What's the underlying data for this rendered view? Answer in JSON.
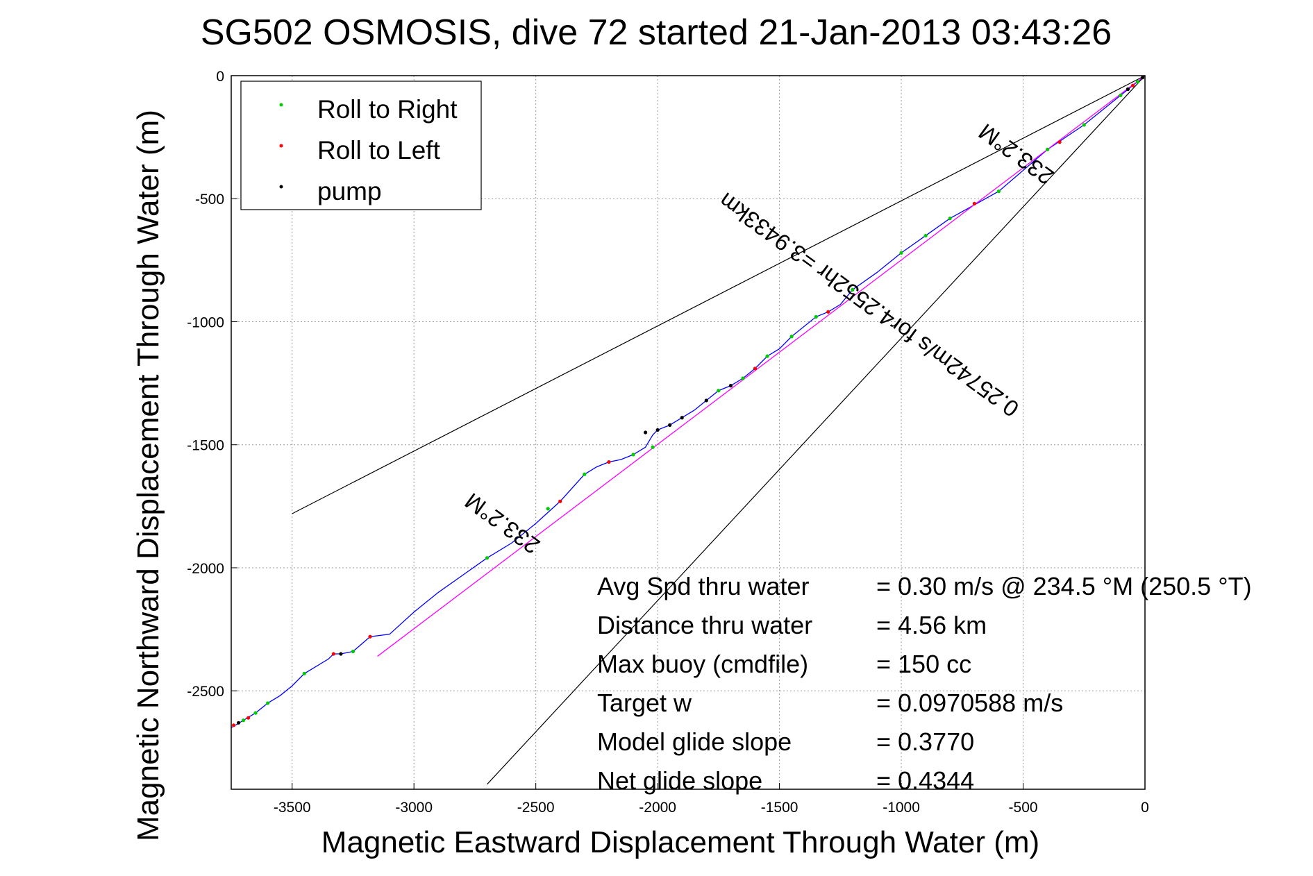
{
  "chart_data": {
    "type": "line",
    "title": "SG502 OSMOSIS, dive 72 started 21-Jan-2013 03:43:26",
    "xlabel": "Magnetic Eastward Displacement Through Water (m)",
    "ylabel": "Magnetic Northward Displacement Through Water (m)",
    "xlim": [
      -3750,
      0
    ],
    "ylim": [
      -2900,
      0
    ],
    "xticks": [
      -3500,
      -3000,
      -2500,
      -2000,
      -1500,
      -1000,
      -500,
      0
    ],
    "yticks": [
      0,
      -500,
      -1000,
      -1500,
      -2000,
      -2500
    ],
    "grid": true,
    "legend": {
      "placement": "top-left",
      "entries": [
        {
          "label": "Roll to Right",
          "color": "#00cc00"
        },
        {
          "label": "Roll to Left",
          "color": "#ff0000"
        },
        {
          "label": "pump",
          "color": "#000000"
        }
      ]
    },
    "series": [
      {
        "name": "track",
        "color": "#0000ff",
        "x": [
          0,
          -100,
          -250,
          -400,
          -600,
          -800,
          -900,
          -1000,
          -1100,
          -1200,
          -1250,
          -1300,
          -1350,
          -1450,
          -1500,
          -1550,
          -1600,
          -1650,
          -1700,
          -1750,
          -1800,
          -1850,
          -1900,
          -1950,
          -2000,
          -2020,
          -2050,
          -2100,
          -2150,
          -2200,
          -2250,
          -2300,
          -2400,
          -2500,
          -2600,
          -2700,
          -2800,
          -2900,
          -3000,
          -3100,
          -3180,
          -3250,
          -3300,
          -3330,
          -3350,
          -3450,
          -3500,
          -3550,
          -3600,
          -3650,
          -3700,
          -3750
        ],
        "y": [
          0,
          -80,
          -200,
          -300,
          -470,
          -580,
          -650,
          -720,
          -800,
          -870,
          -930,
          -960,
          -980,
          -1060,
          -1110,
          -1140,
          -1190,
          -1230,
          -1260,
          -1280,
          -1320,
          -1360,
          -1390,
          -1420,
          -1440,
          -1460,
          -1510,
          -1540,
          -1560,
          -1570,
          -1590,
          -1620,
          -1730,
          -1820,
          -1900,
          -1960,
          -2030,
          -2100,
          -2180,
          -2270,
          -2280,
          -2340,
          -2350,
          -2350,
          -2370,
          -2430,
          -2480,
          -2520,
          -2550,
          -2590,
          -2620,
          -2650
        ]
      },
      {
        "name": "net",
        "color": "#ff00ff",
        "x": [
          0,
          -3150
        ],
        "y": [
          0,
          -2360
        ]
      }
    ],
    "cone_lines": [
      {
        "x": [
          0,
          -3500
        ],
        "y": [
          0,
          -1780
        ]
      },
      {
        "x": [
          0,
          -2700
        ],
        "y": [
          0,
          -2880
        ]
      }
    ],
    "markers": [
      {
        "type": "Roll to Right",
        "points": [
          [
            -30,
            -25
          ],
          [
            -100,
            -80
          ],
          [
            -250,
            -200
          ],
          [
            -400,
            -300
          ],
          [
            -600,
            -470
          ],
          [
            -800,
            -580
          ],
          [
            -900,
            -650
          ],
          [
            -1000,
            -720
          ],
          [
            -1200,
            -870
          ],
          [
            -1350,
            -980
          ],
          [
            -1450,
            -1060
          ],
          [
            -1550,
            -1140
          ],
          [
            -1650,
            -1230
          ],
          [
            -1750,
            -1280
          ],
          [
            -2020,
            -1510
          ],
          [
            -2100,
            -1540
          ],
          [
            -2300,
            -1620
          ],
          [
            -2450,
            -1760
          ],
          [
            -2700,
            -1960
          ],
          [
            -3250,
            -2340
          ],
          [
            -3450,
            -2430
          ],
          [
            -3600,
            -2550
          ],
          [
            -3650,
            -2590
          ],
          [
            -3700,
            -2620
          ]
        ]
      },
      {
        "type": "Roll to Left",
        "points": [
          [
            -50,
            -40
          ],
          [
            -350,
            -270
          ],
          [
            -700,
            -520
          ],
          [
            -1300,
            -960
          ],
          [
            -1600,
            -1190
          ],
          [
            -2200,
            -1570
          ],
          [
            -2400,
            -1730
          ],
          [
            -3180,
            -2280
          ],
          [
            -3330,
            -2350
          ],
          [
            -3680,
            -2610
          ],
          [
            -3740,
            -2640
          ]
        ]
      },
      {
        "type": "pump",
        "points": [
          [
            -10,
            -8
          ],
          [
            -70,
            -55
          ],
          [
            -1700,
            -1260
          ],
          [
            -1800,
            -1320
          ],
          [
            -1900,
            -1390
          ],
          [
            -1950,
            -1420
          ],
          [
            -2000,
            -1440
          ],
          [
            -2050,
            -1450
          ],
          [
            -3300,
            -2350
          ],
          [
            -3720,
            -2630
          ]
        ]
      }
    ],
    "annotations": {
      "heading_near": "233.2°M",
      "speed_line": "0.25742m/s for4.2552hr =3.9433km",
      "heading_far": "233.2°M"
    },
    "stats": [
      {
        "label": "Avg Spd thru water",
        "value": "=  0.30 m/s @ 234.5 °M (250.5 °T)"
      },
      {
        "label": "Distance thru water",
        "value": "=  4.56 km"
      },
      {
        "label": "Max buoy (cmdfile)",
        "value": "= 150 cc"
      },
      {
        "label": "Target w",
        "value": "= 0.0970588 m/s"
      },
      {
        "label": "Model glide slope",
        "value": "= 0.3770"
      },
      {
        "label": "Net glide slope",
        "value": "= 0.4344"
      }
    ]
  }
}
